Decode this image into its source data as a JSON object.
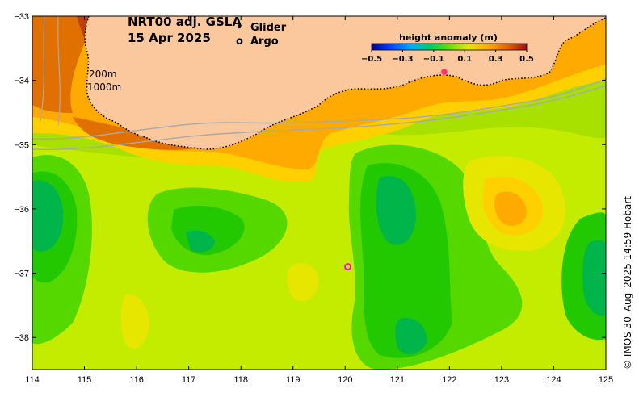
{
  "title": {
    "product": "NRT00 adj. GSLA",
    "date": "15 Apr 2025"
  },
  "legend": {
    "glider_label": "Glider",
    "argo_label": "Argo",
    "glider_marker": "•",
    "argo_marker": "o"
  },
  "colorbar": {
    "title": "height anomaly (m)",
    "ticks": [
      "−0.5",
      "−0.3",
      "−0.1",
      "0.1",
      "0.3",
      "0.5"
    ],
    "min": -0.5,
    "max": 0.5
  },
  "isobaths": {
    "shallow": "200m",
    "deep": "1000m"
  },
  "axes": {
    "x_ticks": [
      "114",
      "115",
      "116",
      "117",
      "118",
      "119",
      "120",
      "121",
      "122",
      "123",
      "124",
      "125"
    ],
    "y_ticks": [
      "−33",
      "−34",
      "−35",
      "−36",
      "−37",
      "−38"
    ],
    "lon_range": [
      114,
      125
    ],
    "lat_range": [
      -38.5,
      -33
    ]
  },
  "argo_float": {
    "lon": 120.05,
    "lat": -36.9
  },
  "glider": {
    "lon": 121.9,
    "lat": -33.87
  },
  "credit": "© IMOS 30–Aug–2025 14:59 Hobart",
  "colors": {
    "land": "#fac89c",
    "argo": "#ff00ff",
    "glider": "#ff3366",
    "isobath": "#a9a9a9"
  }
}
